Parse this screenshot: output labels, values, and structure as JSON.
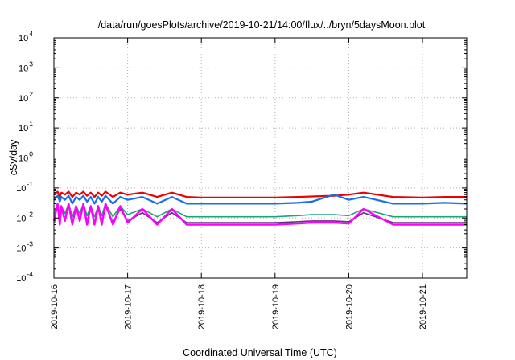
{
  "chart_data": {
    "type": "line",
    "title": "/data/run/goesPlots/archive/2019-10-21/14:00/flux/../bryn/5daysMoon.plot",
    "xlabel": "Coordinated Universal Time (UTC)",
    "ylabel": "cSv/day",
    "yscale": "log",
    "ylim": [
      0.0001,
      10000
    ],
    "xlim": [
      0.0,
      5.6
    ],
    "grid": true,
    "x_ticks": [
      "2019-10-16",
      "2019-10-17",
      "2019-10-18",
      "2019-10-19",
      "2019-10-20",
      "2019-10-21"
    ],
    "y_ticks": [
      {
        "base": "10",
        "exp": "-4"
      },
      {
        "base": "10",
        "exp": "-3"
      },
      {
        "base": "10",
        "exp": "-2"
      },
      {
        "base": "10",
        "exp": "-1"
      },
      {
        "base": "10",
        "exp": "0"
      },
      {
        "base": "10",
        "exp": "1"
      },
      {
        "base": "10",
        "exp": "2"
      },
      {
        "base": "10",
        "exp": "3"
      },
      {
        "base": "10",
        "exp": "4"
      }
    ],
    "x_unit_note": "x values are days since 2019-10-16 00:00 UTC",
    "series": [
      {
        "color": "#ee0000",
        "width": 2.2,
        "x": [
          0.0,
          0.05,
          0.08,
          0.1,
          0.15,
          0.2,
          0.25,
          0.3,
          0.35,
          0.4,
          0.45,
          0.5,
          0.55,
          0.6,
          0.65,
          0.7,
          0.8,
          0.9,
          1.0,
          1.2,
          1.4,
          1.6,
          1.8,
          2.0,
          2.5,
          3.0,
          3.3,
          3.5,
          3.8,
          4.0,
          4.2,
          4.6,
          5.0,
          5.3,
          5.6
        ],
        "y": [
          0.06,
          0.075,
          0.05,
          0.07,
          0.06,
          0.075,
          0.05,
          0.07,
          0.06,
          0.075,
          0.055,
          0.07,
          0.05,
          0.07,
          0.055,
          0.075,
          0.05,
          0.07,
          0.06,
          0.07,
          0.05,
          0.07,
          0.05,
          0.048,
          0.048,
          0.048,
          0.05,
          0.052,
          0.055,
          0.06,
          0.07,
          0.05,
          0.048,
          0.05,
          0.05
        ]
      },
      {
        "color": "#1a6fe6",
        "width": 2.2,
        "x": [
          0.0,
          0.05,
          0.08,
          0.1,
          0.15,
          0.2,
          0.25,
          0.3,
          0.35,
          0.4,
          0.45,
          0.5,
          0.55,
          0.6,
          0.65,
          0.7,
          0.8,
          0.9,
          1.0,
          1.2,
          1.4,
          1.6,
          1.8,
          2.0,
          2.5,
          3.0,
          3.3,
          3.5,
          3.8,
          4.0,
          4.2,
          4.6,
          5.0,
          5.3,
          5.6
        ],
        "y": [
          0.04,
          0.055,
          0.035,
          0.05,
          0.04,
          0.055,
          0.03,
          0.05,
          0.04,
          0.055,
          0.035,
          0.05,
          0.03,
          0.05,
          0.035,
          0.055,
          0.03,
          0.05,
          0.04,
          0.05,
          0.03,
          0.05,
          0.03,
          0.03,
          0.03,
          0.03,
          0.032,
          0.035,
          0.06,
          0.04,
          0.05,
          0.03,
          0.03,
          0.032,
          0.03
        ]
      },
      {
        "color": "#1aa67a",
        "width": 1.6,
        "x": [
          0.0,
          0.05,
          0.08,
          0.1,
          0.15,
          0.2,
          0.25,
          0.3,
          0.35,
          0.4,
          0.45,
          0.5,
          0.55,
          0.6,
          0.65,
          0.7,
          0.8,
          0.9,
          1.0,
          1.2,
          1.4,
          1.6,
          1.8,
          2.0,
          2.5,
          3.0,
          3.3,
          3.5,
          3.8,
          4.0,
          4.2,
          4.6,
          5.0,
          5.3,
          5.6
        ],
        "y": [
          0.014,
          0.03,
          0.012,
          0.025,
          0.014,
          0.03,
          0.011,
          0.025,
          0.014,
          0.03,
          0.012,
          0.025,
          0.011,
          0.025,
          0.012,
          0.03,
          0.011,
          0.025,
          0.013,
          0.02,
          0.011,
          0.02,
          0.011,
          0.011,
          0.011,
          0.011,
          0.012,
          0.013,
          0.013,
          0.012,
          0.02,
          0.011,
          0.011,
          0.011,
          0.011
        ]
      },
      {
        "color": "#6a2a8a",
        "width": 1.6,
        "x": [
          0.0,
          0.05,
          0.08,
          0.1,
          0.15,
          0.2,
          0.25,
          0.3,
          0.35,
          0.4,
          0.45,
          0.5,
          0.55,
          0.6,
          0.65,
          0.7,
          0.8,
          0.9,
          1.0,
          1.2,
          1.4,
          1.6,
          1.8,
          2.0,
          2.5,
          3.0,
          3.3,
          3.5,
          3.8,
          4.0,
          4.2,
          4.6,
          5.0,
          5.3,
          5.6
        ],
        "y": [
          0.009,
          0.025,
          0.008,
          0.02,
          0.009,
          0.025,
          0.007,
          0.02,
          0.009,
          0.025,
          0.008,
          0.02,
          0.007,
          0.02,
          0.008,
          0.025,
          0.007,
          0.02,
          0.008,
          0.015,
          0.007,
          0.015,
          0.007,
          0.007,
          0.007,
          0.007,
          0.0075,
          0.008,
          0.008,
          0.0075,
          0.015,
          0.007,
          0.007,
          0.007,
          0.007
        ]
      },
      {
        "color": "#ff00ff",
        "width": 2.4,
        "x": [
          0.0,
          0.05,
          0.08,
          0.1,
          0.15,
          0.2,
          0.25,
          0.3,
          0.35,
          0.4,
          0.45,
          0.5,
          0.55,
          0.6,
          0.65,
          0.7,
          0.8,
          0.9,
          1.0,
          1.2,
          1.4,
          1.6,
          1.8,
          2.0,
          2.5,
          3.0,
          3.3,
          3.5,
          3.8,
          4.0,
          4.2,
          4.6,
          5.0,
          5.3,
          5.6
        ],
        "y": [
          0.008,
          0.03,
          0.006,
          0.025,
          0.008,
          0.03,
          0.006,
          0.025,
          0.008,
          0.03,
          0.006,
          0.025,
          0.006,
          0.025,
          0.006,
          0.03,
          0.006,
          0.025,
          0.007,
          0.02,
          0.006,
          0.02,
          0.006,
          0.006,
          0.006,
          0.006,
          0.0065,
          0.007,
          0.007,
          0.0065,
          0.02,
          0.006,
          0.006,
          0.006,
          0.006
        ]
      }
    ]
  }
}
